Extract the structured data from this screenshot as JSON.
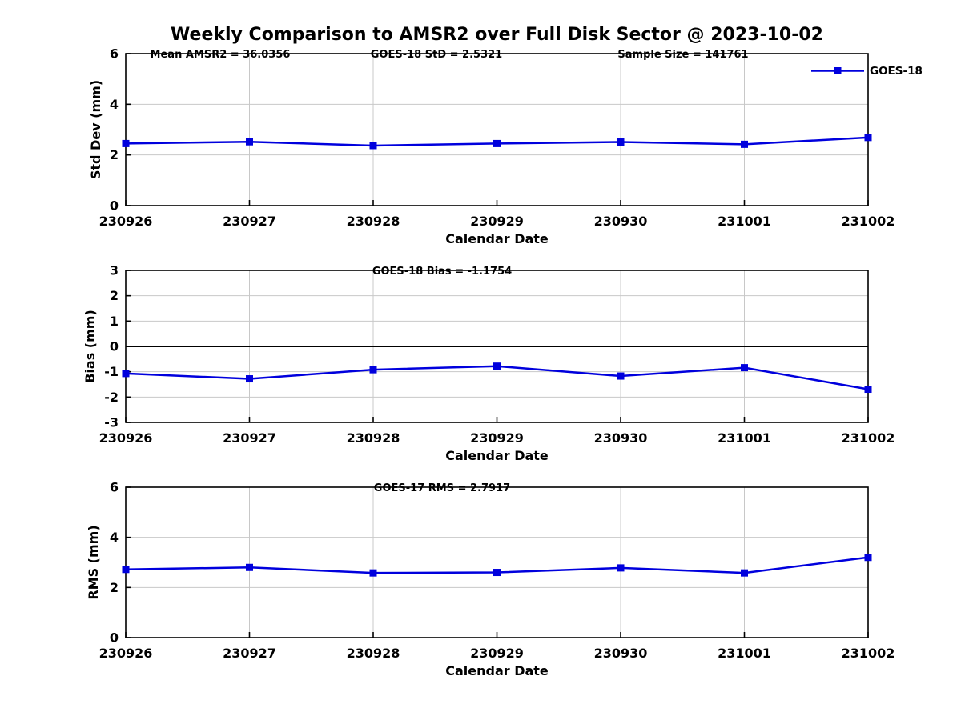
{
  "title": "Weekly Comparison to AMSR2 over Full Disk Sector @ 2023-10-02",
  "colors": {
    "line": "#0000dd",
    "marker": "#0000dd",
    "grid": "#c8c8c8",
    "axis": "#000000",
    "zero_line": "#000000",
    "background": "#ffffff"
  },
  "legend": {
    "label": "GOES-18",
    "position": "top-right"
  },
  "chart_data": [
    {
      "type": "line",
      "panel": "std-dev",
      "annotations": [
        "Mean AMSR2 = 36.0356",
        "GOES-18 StD = 2.5321",
        "Sample Size = 141761"
      ],
      "categories": [
        "230926",
        "230927",
        "230928",
        "230929",
        "230930",
        "231001",
        "231002"
      ],
      "series": [
        {
          "name": "GOES-18",
          "values": [
            2.45,
            2.52,
            2.37,
            2.45,
            2.51,
            2.42,
            2.69
          ]
        }
      ],
      "xlabel": "Calendar Date",
      "ylabel": "Std Dev (mm)",
      "ylim": [
        0,
        6
      ],
      "yticks": [
        0,
        2,
        4,
        6
      ],
      "grid": true,
      "zero_line": false,
      "legend": true,
      "legend_entries": [
        "GOES-18"
      ]
    },
    {
      "type": "line",
      "panel": "bias",
      "annotations": [
        "GOES-18 Bias  = -1.1754"
      ],
      "categories": [
        "230926",
        "230927",
        "230928",
        "230929",
        "230930",
        "231001",
        "231002"
      ],
      "series": [
        {
          "name": "GOES-18",
          "values": [
            -1.07,
            -1.28,
            -0.92,
            -0.78,
            -1.17,
            -0.84,
            -1.69
          ]
        }
      ],
      "xlabel": "Calendar Date",
      "ylabel": "Bias (mm)",
      "ylim": [
        -3,
        3
      ],
      "yticks": [
        -3,
        -2,
        -1,
        0,
        1,
        2,
        3
      ],
      "grid": true,
      "zero_line": true,
      "legend": false,
      "legend_entries": []
    },
    {
      "type": "line",
      "panel": "rms",
      "annotations": [
        "GOES-17 RMS = 2.7917"
      ],
      "categories": [
        "230926",
        "230927",
        "230928",
        "230929",
        "230930",
        "231001",
        "231002"
      ],
      "series": [
        {
          "name": "GOES-18",
          "values": [
            2.72,
            2.8,
            2.58,
            2.6,
            2.78,
            2.58,
            3.2
          ]
        }
      ],
      "xlabel": "Calendar Date",
      "ylabel": "RMS (mm)",
      "ylim": [
        0,
        6
      ],
      "yticks": [
        0,
        2,
        4,
        6
      ],
      "grid": true,
      "zero_line": false,
      "legend": false,
      "legend_entries": []
    }
  ]
}
